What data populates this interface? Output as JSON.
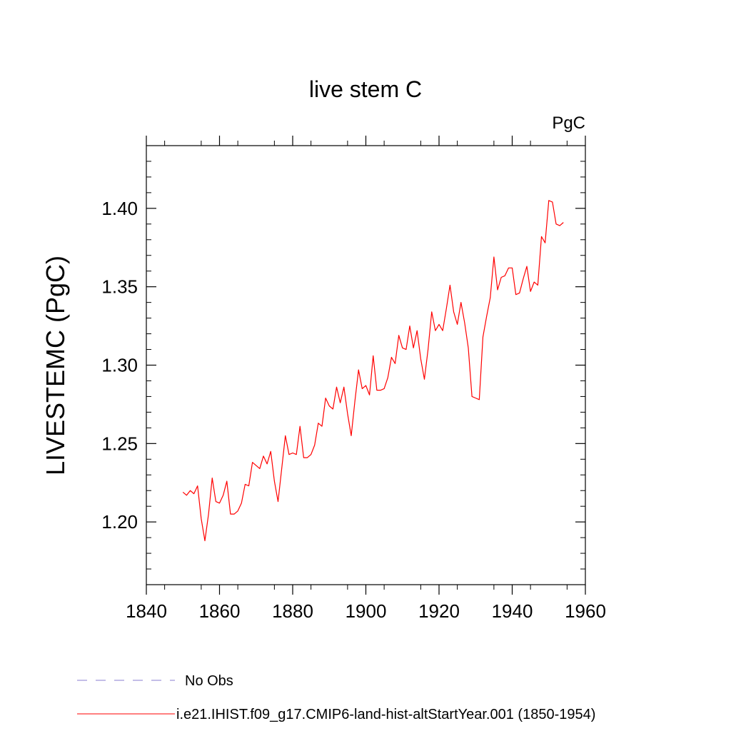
{
  "chart_data": {
    "type": "line",
    "title": "live stem C",
    "units_label": "PgC",
    "ylabel": "LIVESTEMC  (PgC)",
    "xlabel": "",
    "xlim": [
      1840,
      1960
    ],
    "ylim": [
      1.16,
      1.44
    ],
    "x_ticks": [
      1840,
      1860,
      1880,
      1900,
      1920,
      1940,
      1960
    ],
    "y_ticks": [
      1.2,
      1.25,
      1.3,
      1.35,
      1.4
    ],
    "y_tick_labels": [
      "1.20",
      "1.25",
      "1.30",
      "1.35",
      "1.40"
    ],
    "grid": false,
    "legend_placement": "bottom",
    "series": [
      {
        "name": "i.e21.IHIST.f09_g17.CMIP6-land-hist-altStartYear.001 (1850-1954)",
        "color": "#ff0000",
        "style": "solid",
        "x": [
          1850,
          1851,
          1852,
          1853,
          1854,
          1855,
          1856,
          1857,
          1858,
          1859,
          1860,
          1861,
          1862,
          1863,
          1864,
          1865,
          1866,
          1867,
          1868,
          1869,
          1870,
          1871,
          1872,
          1873,
          1874,
          1875,
          1876,
          1877,
          1878,
          1879,
          1880,
          1881,
          1882,
          1883,
          1884,
          1885,
          1886,
          1887,
          1888,
          1889,
          1890,
          1891,
          1892,
          1893,
          1894,
          1895,
          1896,
          1897,
          1898,
          1899,
          1900,
          1901,
          1902,
          1903,
          1904,
          1905,
          1906,
          1907,
          1908,
          1909,
          1910,
          1911,
          1912,
          1913,
          1914,
          1915,
          1916,
          1917,
          1918,
          1919,
          1920,
          1921,
          1922,
          1923,
          1924,
          1925,
          1926,
          1927,
          1928,
          1929,
          1930,
          1931,
          1932,
          1933,
          1934,
          1935,
          1936,
          1937,
          1938,
          1939,
          1940,
          1941,
          1942,
          1943,
          1944,
          1945,
          1946,
          1947,
          1948,
          1949,
          1950,
          1951,
          1952,
          1953,
          1954
        ],
        "y": [
          1.219,
          1.217,
          1.22,
          1.218,
          1.223,
          1.202,
          1.188,
          1.205,
          1.228,
          1.213,
          1.212,
          1.217,
          1.226,
          1.205,
          1.205,
          1.207,
          1.212,
          1.224,
          1.223,
          1.238,
          1.236,
          1.234,
          1.242,
          1.237,
          1.245,
          1.226,
          1.213,
          1.234,
          1.255,
          1.243,
          1.244,
          1.243,
          1.261,
          1.241,
          1.241,
          1.243,
          1.249,
          1.263,
          1.261,
          1.279,
          1.274,
          1.272,
          1.286,
          1.276,
          1.286,
          1.269,
          1.255,
          1.277,
          1.297,
          1.285,
          1.287,
          1.281,
          1.306,
          1.284,
          1.284,
          1.285,
          1.292,
          1.305,
          1.301,
          1.319,
          1.311,
          1.31,
          1.325,
          1.311,
          1.322,
          1.304,
          1.291,
          1.31,
          1.334,
          1.322,
          1.326,
          1.322,
          1.336,
          1.351,
          1.334,
          1.326,
          1.34,
          1.327,
          1.311,
          1.28,
          1.279,
          1.278,
          1.318,
          1.331,
          1.343,
          1.369,
          1.348,
          1.356,
          1.357,
          1.362,
          1.362,
          1.345,
          1.346,
          1.355,
          1.363,
          1.347,
          1.353,
          1.351,
          1.382,
          1.378,
          1.405,
          1.404,
          1.39,
          1.389,
          1.391
        ]
      },
      {
        "name": "No Obs",
        "color": "#8a7dd1",
        "style": "dashed",
        "x": [],
        "y": []
      }
    ]
  }
}
